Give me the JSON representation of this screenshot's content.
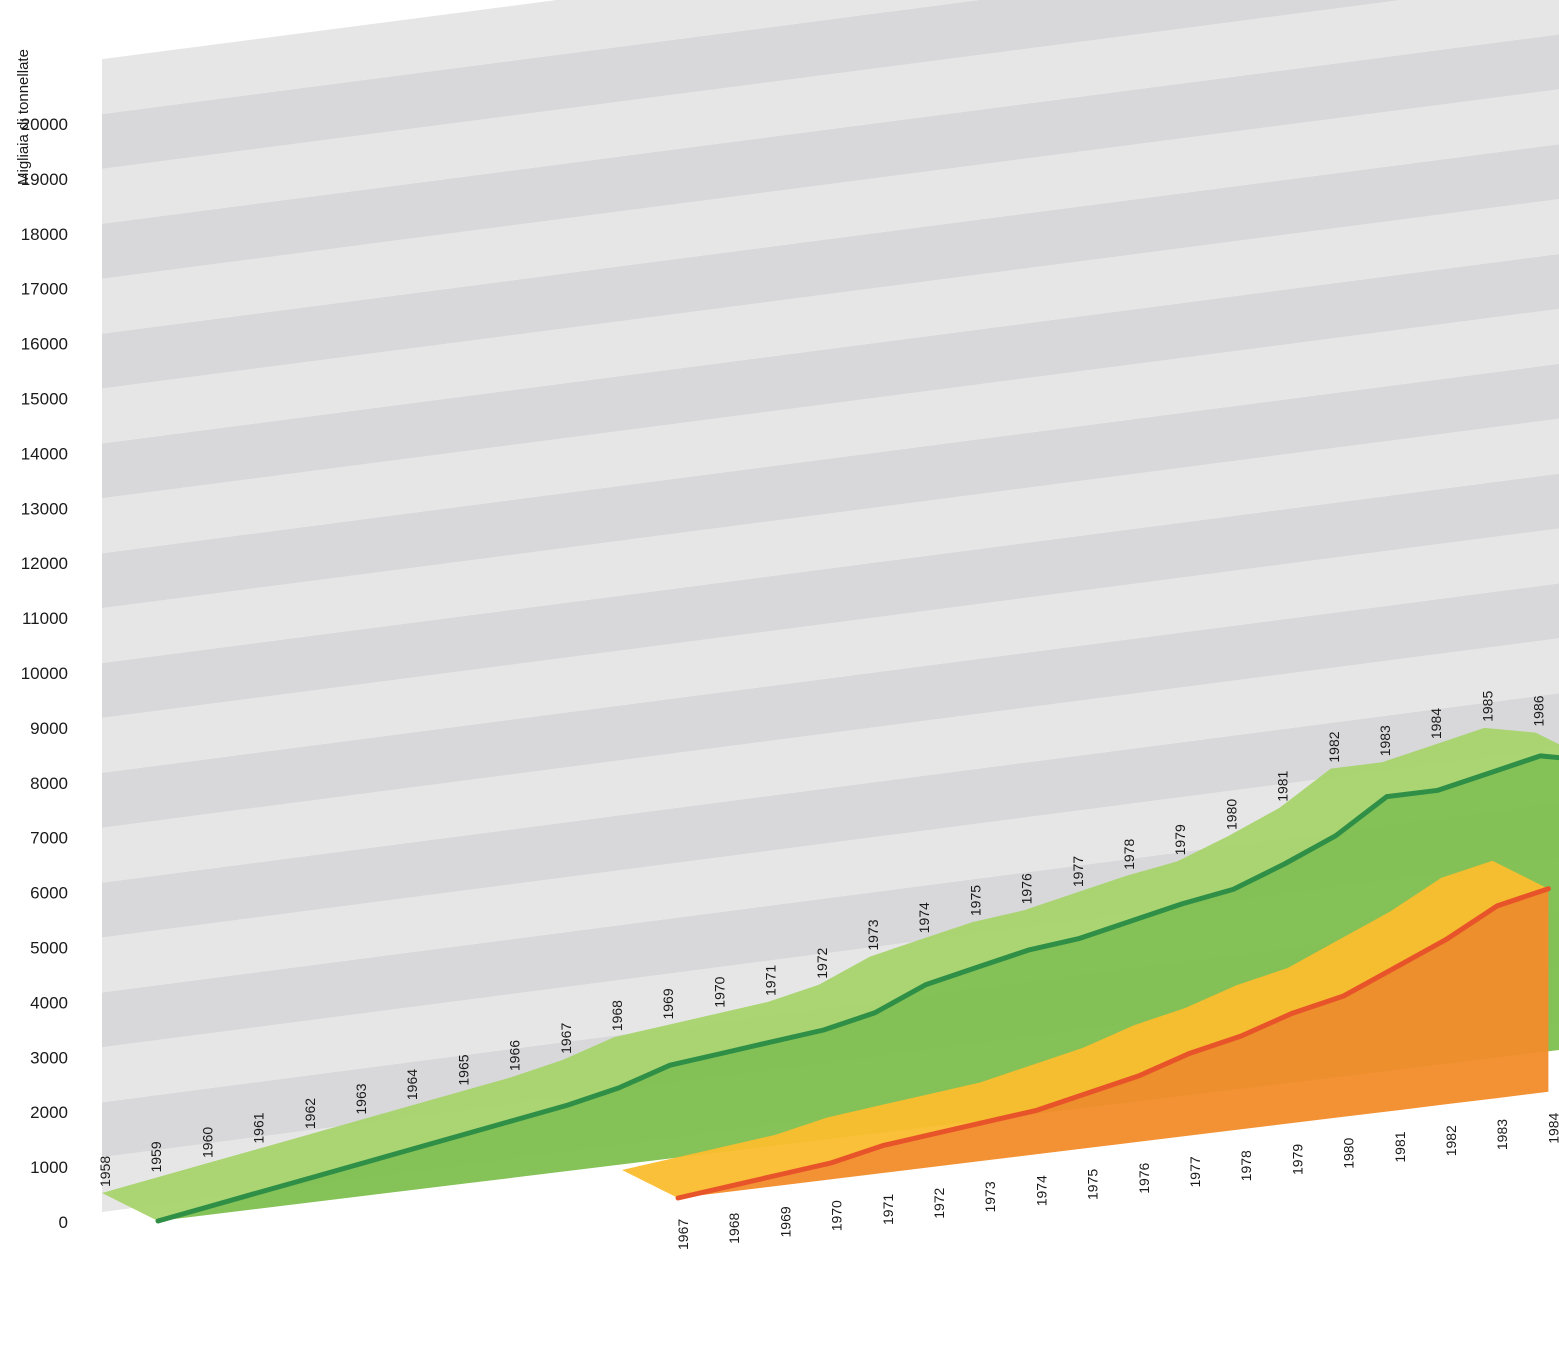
{
  "chart_data": {
    "type": "area",
    "ylabel": "Migliaia di tonnellate",
    "ylim": [
      0,
      20000
    ],
    "yticks": [
      0,
      1000,
      2000,
      3000,
      4000,
      5000,
      6000,
      7000,
      8000,
      9000,
      10000,
      11000,
      12000,
      13000,
      14000,
      15000,
      16000,
      17000,
      18000,
      19000,
      20000
    ],
    "ytick_labels": [
      "0",
      "1000",
      "2000",
      "3000",
      "4000",
      "5000",
      "6000",
      "7000",
      "8000",
      "9000",
      "10000",
      "11000",
      "12000",
      "13000",
      "14000",
      "15000",
      "16000",
      "17000",
      "18000",
      "19000",
      "20000"
    ],
    "grid": true,
    "series": [
      {
        "x": [
          "1958",
          "1959",
          "1960",
          "1961",
          "1962",
          "1963",
          "1964",
          "1965",
          "1966",
          "1967",
          "1968",
          "1969",
          "1970",
          "1971",
          "1972",
          "1973",
          "1974",
          "1975",
          "1976",
          "1977",
          "1978",
          "1979",
          "1980",
          "1981",
          "1982",
          "1983",
          "1984",
          "1985",
          "1986"
        ],
        "values": [
          0,
          150,
          300,
          450,
          600,
          750,
          900,
          1050,
          1200,
          1400,
          1700,
          1800,
          1900,
          2000,
          2200,
          2600,
          2800,
          3000,
          3100,
          3300,
          3500,
          3650,
          4000,
          4400,
          5000,
          5000,
          5200,
          5400,
          5200
        ],
        "fill": "#7ebf4e",
        "top_fill": "#a8d46b",
        "line": "#2f8f46"
      },
      {
        "x": [
          "1967",
          "1968",
          "1969",
          "1970",
          "1971",
          "1972",
          "1973",
          "1974",
          "1975",
          "1976",
          "1977",
          "1978",
          "1979",
          "1980",
          "1981",
          "1982",
          "1983",
          "1984"
        ],
        "values": [
          0,
          100,
          200,
          300,
          500,
          600,
          700,
          800,
          1000,
          1200,
          1500,
          1700,
          2000,
          2200,
          2600,
          3000,
          3500,
          3700
        ],
        "fill": "#f28c2a",
        "top_fill": "#fbbd2e",
        "line": "#e8542a"
      }
    ]
  }
}
